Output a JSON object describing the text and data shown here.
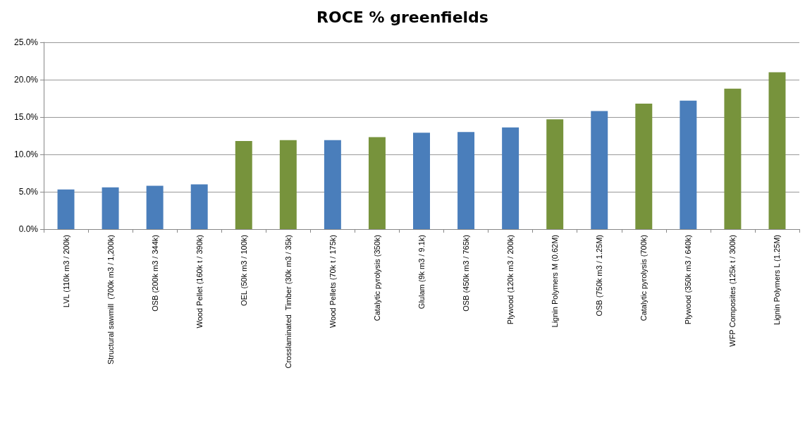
{
  "chart_data": {
    "type": "bar",
    "title": "ROCE % greenfields",
    "categories": [
      "LVL (110k m3 / 200k)",
      "Structural sawmill  (700k m3 / 1,200k)",
      "OSB (200k m3 / 344k)",
      "Wood Pellet (160k t / 390k)",
      "OEL (50k m3 / 100k)",
      "Crosslaminated  Timber (30k m3 / 35k)",
      "Wood Pellets (70k t / 175k)",
      "Catalytic pyrolysis (350k)",
      "Glulam (9k m3 / 9.1k)",
      "OSB (450k m3 / 765k)",
      "Plywood (120k m3 / 200k)",
      "Lignin Polymers M (0.62M)",
      "OSB (750k m3 / 1.25M)",
      "Catalytic pyrolysis (700k)",
      "Plywood (350k m3 / 640k)",
      "WFP Composites (125k t / 300k)",
      "Lignin Polymers L (1.25M)"
    ],
    "values": [
      5.3,
      5.6,
      5.8,
      6.0,
      11.8,
      11.9,
      11.9,
      12.3,
      12.9,
      13.0,
      13.6,
      14.7,
      15.8,
      16.8,
      17.2,
      18.8,
      21.0
    ],
    "colors": [
      "#4a7ebb",
      "#4a7ebb",
      "#4a7ebb",
      "#4a7ebb",
      "#77933c",
      "#77933c",
      "#4a7ebb",
      "#77933c",
      "#4a7ebb",
      "#4a7ebb",
      "#4a7ebb",
      "#77933c",
      "#4a7ebb",
      "#77933c",
      "#4a7ebb",
      "#77933c",
      "#77933c"
    ],
    "ylim": [
      0,
      25
    ],
    "yticks": [
      {
        "value": 0,
        "label": "0.0%"
      },
      {
        "value": 5,
        "label": "5.0%"
      },
      {
        "value": 10,
        "label": "10.0%"
      },
      {
        "value": 15,
        "label": "15.0%"
      },
      {
        "value": 20,
        "label": "20.0%"
      },
      {
        "value": 25,
        "label": "25.0%"
      }
    ],
    "grid": "y"
  }
}
